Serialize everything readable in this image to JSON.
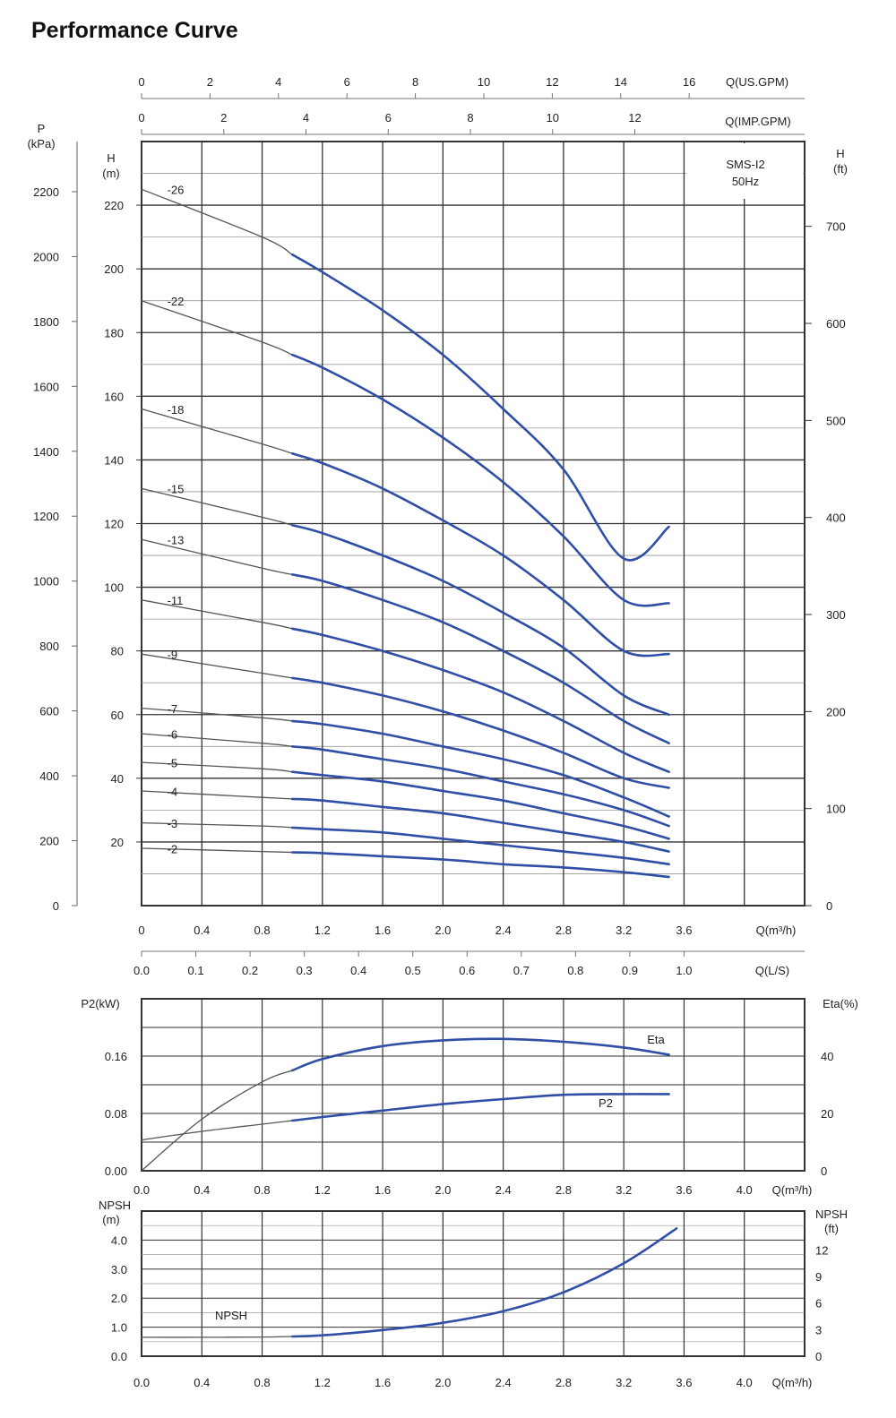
{
  "title": "Performance Curve",
  "colors": {
    "curve_blue": "#2f4fa6",
    "curve_dark": "#555555",
    "grid": "#333333",
    "grid_minor": "#9a9a9a"
  },
  "chart_data": [
    {
      "type": "line",
      "name": "head-curves",
      "model": "SMS-I2",
      "frequency": "50Hz",
      "x": {
        "label": "Q(m³/h)",
        "ticks": [
          "0",
          "0.4",
          "0.8",
          "1.2",
          "1.6",
          "2.0",
          "2.4",
          "2.8",
          "3.2",
          "3.6"
        ],
        "range": [
          0,
          4.4
        ]
      },
      "x_secondary": {
        "label": "Q(L/S)",
        "ticks": [
          "0.0",
          "0.1",
          "0.2",
          "0.3",
          "0.4",
          "0.5",
          "0.6",
          "0.7",
          "0.8",
          "0.9",
          "1.0"
        ]
      },
      "x_top_1": {
        "label": "Q(US.GPM)",
        "ticks": [
          "0",
          "2",
          "4",
          "6",
          "8",
          "10",
          "12",
          "14",
          "16"
        ]
      },
      "x_top_2": {
        "label": "Q(IMP.GPM)",
        "ticks": [
          "0",
          "2",
          "4",
          "6",
          "8",
          "10",
          "12"
        ]
      },
      "y": {
        "label_top": "H",
        "label_bottom": "(m)",
        "ticks": [
          "20",
          "40",
          "60",
          "80",
          "100",
          "120",
          "140",
          "160",
          "180",
          "200",
          "220"
        ],
        "range": [
          0,
          240
        ]
      },
      "y_left_outer": {
        "label_top": "P",
        "label_bottom": "(kPa)",
        "ticks": [
          "0",
          "200",
          "400",
          "600",
          "800",
          "1000",
          "1200",
          "1400",
          "1600",
          "1800",
          "2000",
          "2200"
        ]
      },
      "y_right": {
        "label_top": "H",
        "label_bottom": "(ft)",
        "ticks": [
          "0",
          "100",
          "200",
          "300",
          "400",
          "500",
          "600",
          "700"
        ]
      },
      "operating_range": [
        1.0,
        3.5
      ],
      "series": [
        {
          "name": "-26",
          "x": [
            0,
            0.8,
            1.2,
            1.6,
            2.0,
            2.4,
            2.8,
            3.2,
            3.5
          ],
          "y": [
            225,
            210,
            199,
            187,
            173,
            156,
            137,
            109,
            119
          ]
        },
        {
          "name": "-22",
          "x": [
            0,
            0.8,
            1.2,
            1.6,
            2.0,
            2.4,
            2.8,
            3.2,
            3.5
          ],
          "y": [
            190,
            177,
            169,
            159,
            147,
            133,
            116,
            96,
            95
          ]
        },
        {
          "name": "-18",
          "x": [
            0,
            0.8,
            1.2,
            1.6,
            2.0,
            2.4,
            2.8,
            3.2,
            3.5
          ],
          "y": [
            156,
            145,
            139,
            131,
            121,
            110,
            96,
            80,
            79
          ]
        },
        {
          "name": "-15",
          "x": [
            0,
            0.8,
            1.2,
            1.6,
            2.0,
            2.4,
            2.8,
            3.2,
            3.5
          ],
          "y": [
            131,
            122,
            117,
            110,
            102,
            92,
            81,
            66,
            60
          ]
        },
        {
          "name": "-13",
          "x": [
            0,
            0.8,
            1.2,
            1.6,
            2.0,
            2.4,
            2.8,
            3.2,
            3.5
          ],
          "y": [
            115,
            106,
            102,
            96,
            89,
            80,
            70,
            58,
            51
          ]
        },
        {
          "name": "-11",
          "x": [
            0,
            0.8,
            1.2,
            1.6,
            2.0,
            2.4,
            2.8,
            3.2,
            3.5
          ],
          "y": [
            96,
            89,
            85,
            80,
            74,
            67,
            58,
            48,
            42
          ]
        },
        {
          "name": "-9",
          "x": [
            0,
            0.8,
            1.2,
            1.6,
            2.0,
            2.4,
            2.8,
            3.2,
            3.5
          ],
          "y": [
            79,
            73,
            70,
            66,
            61,
            55,
            48,
            40,
            37
          ]
        },
        {
          "name": "-7",
          "x": [
            0,
            0.8,
            1.2,
            1.6,
            2.0,
            2.4,
            2.8,
            3.2,
            3.5
          ],
          "y": [
            62,
            59,
            57,
            54,
            50,
            46,
            41,
            34,
            28
          ]
        },
        {
          "name": "-6",
          "x": [
            0,
            0.8,
            1.2,
            1.6,
            2.0,
            2.4,
            2.8,
            3.2,
            3.5
          ],
          "y": [
            54,
            51,
            49,
            46,
            43,
            39,
            35,
            30,
            25
          ]
        },
        {
          "name": "-5",
          "x": [
            0,
            0.8,
            1.2,
            1.6,
            2.0,
            2.4,
            2.8,
            3.2,
            3.5
          ],
          "y": [
            45,
            43,
            41,
            39,
            36,
            33,
            29,
            25,
            21
          ]
        },
        {
          "name": "-4",
          "x": [
            0,
            0.8,
            1.2,
            1.6,
            2.0,
            2.4,
            2.8,
            3.2,
            3.5
          ],
          "y": [
            36,
            34,
            33,
            31,
            29,
            26,
            23,
            20,
            17
          ]
        },
        {
          "name": "-3",
          "x": [
            0,
            0.8,
            1.2,
            1.6,
            2.0,
            2.4,
            2.8,
            3.2,
            3.5
          ],
          "y": [
            26,
            25,
            24,
            23,
            21,
            19,
            17,
            15,
            13
          ]
        },
        {
          "name": "-2",
          "x": [
            0,
            0.8,
            1.2,
            1.6,
            2.0,
            2.4,
            2.8,
            3.2,
            3.5
          ],
          "y": [
            18,
            17,
            16.5,
            15.5,
            14.5,
            13,
            12,
            10.5,
            9
          ]
        }
      ]
    },
    {
      "type": "line",
      "name": "power-efficiency",
      "x": {
        "label": "Q(m³/h)",
        "ticks": [
          "0.0",
          "0.4",
          "0.8",
          "1.2",
          "1.6",
          "2.0",
          "2.4",
          "2.8",
          "3.2",
          "3.6",
          "4.0"
        ],
        "range": [
          0,
          4.4
        ]
      },
      "y_left": {
        "label": "P2(kW)",
        "ticks": [
          "0.00",
          "0.08",
          "0.16"
        ],
        "range": [
          0,
          0.24
        ]
      },
      "y_right": {
        "label": "Eta(%)",
        "ticks": [
          "0",
          "20",
          "40"
        ],
        "range": [
          0,
          60
        ]
      },
      "operating_range": [
        1.0,
        3.5
      ],
      "series": [
        {
          "name": "Eta",
          "axis": "right",
          "x": [
            0,
            0.4,
            0.8,
            1.2,
            1.6,
            2.0,
            2.4,
            2.8,
            3.2,
            3.5
          ],
          "y": [
            0,
            18,
            31,
            39,
            43.5,
            45.5,
            46,
            45,
            43,
            40.5
          ]
        },
        {
          "name": "P2",
          "axis": "left",
          "x": [
            0,
            0.4,
            0.8,
            1.2,
            1.6,
            2.0,
            2.4,
            2.8,
            3.2,
            3.5
          ],
          "y": [
            0.043,
            0.055,
            0.065,
            0.075,
            0.084,
            0.093,
            0.1,
            0.106,
            0.107,
            0.107
          ]
        }
      ]
    },
    {
      "type": "line",
      "name": "npsh",
      "x": {
        "label": "Q(m³/h)",
        "ticks": [
          "0.0",
          "0.4",
          "0.8",
          "1.2",
          "1.6",
          "2.0",
          "2.4",
          "2.8",
          "3.2",
          "3.6",
          "4.0"
        ],
        "range": [
          0,
          4.4
        ]
      },
      "y_left": {
        "label_top": "NPSH",
        "label_bottom": "(m)",
        "ticks": [
          "0.0",
          "1.0",
          "2.0",
          "3.0",
          "4.0"
        ],
        "range": [
          0,
          5.0
        ]
      },
      "y_right": {
        "label_top": "NPSH",
        "label_bottom": "(ft)",
        "ticks": [
          "0",
          "3",
          "6",
          "9",
          "12"
        ],
        "range": [
          0,
          16.4
        ]
      },
      "operating_range": [
        1.0,
        3.55
      ],
      "series": [
        {
          "name": "NPSH",
          "x": [
            0,
            0.4,
            0.8,
            1.0,
            1.2,
            1.6,
            2.0,
            2.4,
            2.8,
            3.2,
            3.55
          ],
          "y": [
            0.65,
            0.65,
            0.66,
            0.68,
            0.72,
            0.9,
            1.15,
            1.55,
            2.2,
            3.2,
            4.4
          ]
        }
      ]
    }
  ]
}
